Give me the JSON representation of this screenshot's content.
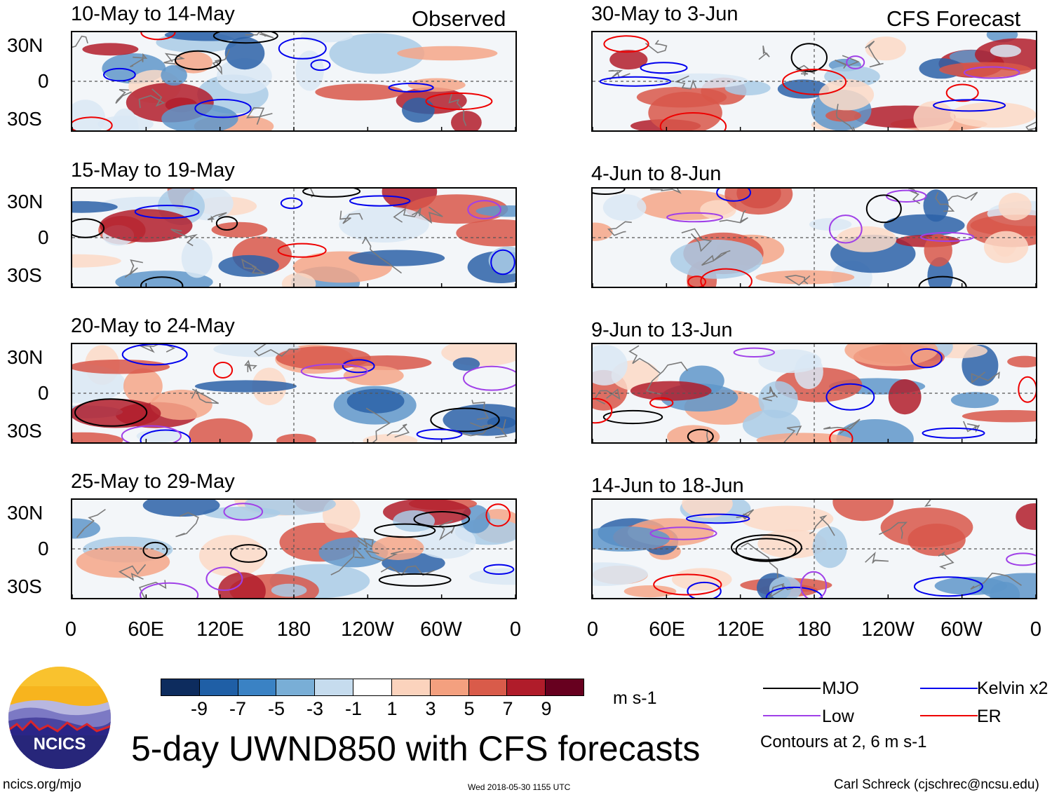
{
  "observed": {
    "tag": "Observed",
    "panels": [
      {
        "title": "10-May to 14-May"
      },
      {
        "title": "15-May to 19-May"
      },
      {
        "title": "20-May to 24-May"
      },
      {
        "title": "25-May to 29-May"
      }
    ]
  },
  "forecast": {
    "tag": "CFS Forecast",
    "panels": [
      {
        "title": "30-May to 3-Jun"
      },
      {
        "title": "4-Jun to 8-Jun"
      },
      {
        "title": "9-Jun to 13-Jun"
      },
      {
        "title": "14-Jun to 18-Jun"
      }
    ]
  },
  "lat_labels": [
    "30N",
    "0",
    "30S"
  ],
  "lon_labels": [
    "0",
    "60E",
    "120E",
    "180",
    "120W",
    "60W",
    "0"
  ],
  "colorbar": {
    "ticks": [
      "-9",
      "-7",
      "-5",
      "-3",
      "-1",
      "1",
      "3",
      "5",
      "7",
      "9"
    ],
    "colors": [
      "#0d2c5e",
      "#1f5fa6",
      "#3a82c4",
      "#79aed6",
      "#c6dcee",
      "#ffffff",
      "#fbd3bd",
      "#f4a07f",
      "#d95b4a",
      "#b01c2a",
      "#67001f"
    ],
    "units": "m s-1"
  },
  "legend": {
    "items": [
      {
        "label": "MJO",
        "color": "#000000"
      },
      {
        "label": "Kelvin x2",
        "color": "#0000ee"
      },
      {
        "label": "Low",
        "color": "#a040e8"
      },
      {
        "label": "ER",
        "color": "#ee0000"
      }
    ],
    "note": "Contours at 2, 6 m s-1"
  },
  "title": "5-day UWND850 with CFS forecasts",
  "logo_text": "NCICS",
  "footer": {
    "left": "ncics.org/mjo",
    "center": "Wed 2018-05-30 1155 UTC",
    "right": "Carl Schreck (cjschrec@ncsu.edu)"
  }
}
